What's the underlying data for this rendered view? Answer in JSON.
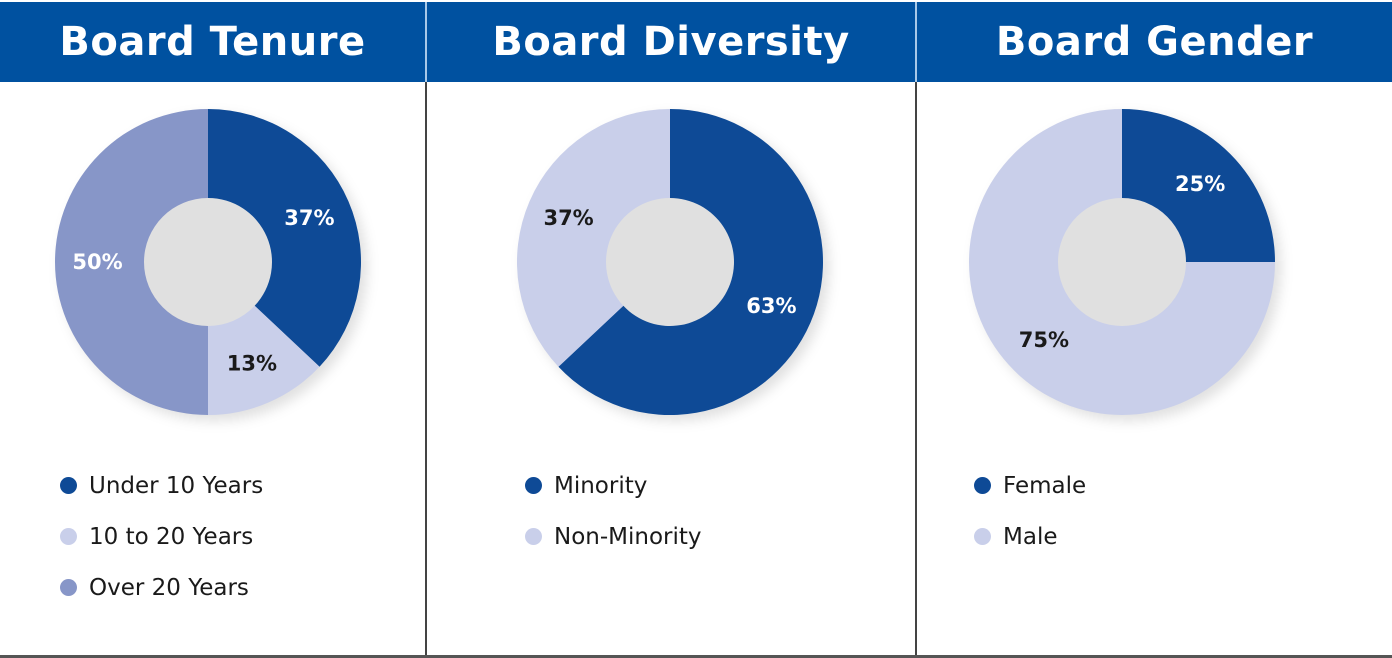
{
  "colors": {
    "header_bg": "#0051a0",
    "dark": "#0e4a96",
    "light": "#c9cfea",
    "mid": "#8796c8"
  },
  "chart_data": [
    {
      "type": "pie",
      "title": "Board Tenure",
      "categories": [
        "Under 10 Years",
        "10 to 20 Years",
        "Over 20 Years"
      ],
      "values": [
        37,
        13,
        50
      ],
      "labels": [
        "37%",
        "13%",
        "50%"
      ],
      "colors": [
        "#0e4a96",
        "#c9cfea",
        "#8796c8"
      ],
      "label_colors": [
        "#ffffff",
        "#1a1a1a",
        "#ffffff"
      ],
      "legend": "bottom-left"
    },
    {
      "type": "pie",
      "title": "Board Diversity",
      "categories": [
        "Minority",
        "Non-Minority"
      ],
      "values": [
        63,
        37
      ],
      "labels": [
        "63%",
        "37%"
      ],
      "colors": [
        "#0e4a96",
        "#c9cfea"
      ],
      "label_colors": [
        "#ffffff",
        "#1a1a1a"
      ],
      "legend": "bottom-left"
    },
    {
      "type": "pie",
      "title": "Board Gender",
      "categories": [
        "Female",
        "Male"
      ],
      "values": [
        25,
        75
      ],
      "labels": [
        "25%",
        "75%"
      ],
      "colors": [
        "#0e4a96",
        "#c9cfea"
      ],
      "label_colors": [
        "#ffffff",
        "#1a1a1a"
      ],
      "legend": "bottom-left"
    }
  ]
}
